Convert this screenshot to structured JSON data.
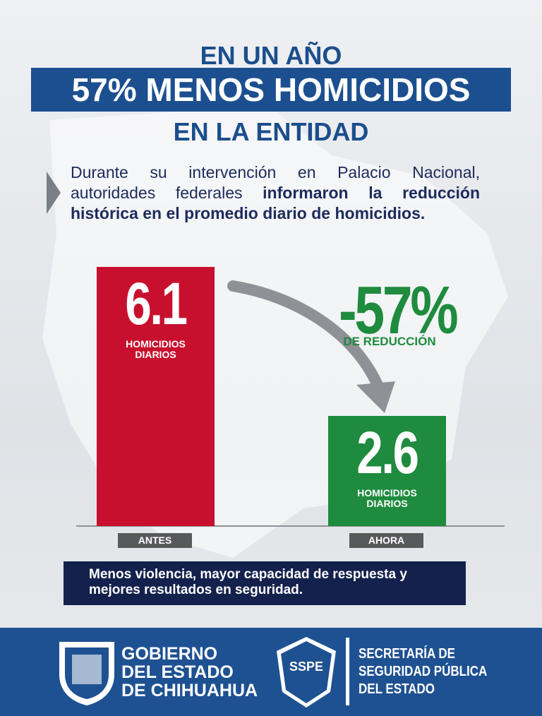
{
  "header": {
    "line1": "EN UN AÑO",
    "line2": "57% MENOS HOMICIDIOS",
    "line3": "EN LA ENTIDAD"
  },
  "intro": {
    "text": "Durante su intervención en Palacio Nacional, autoridades federales ",
    "bold": "informaron la reducción histórica en el promedio diario de homicidios."
  },
  "chart_data": {
    "type": "bar",
    "categories": [
      "ANTES",
      "AHORA"
    ],
    "values": [
      6.1,
      2.6
    ],
    "colors": [
      "#c8102e",
      "#1e8b3e"
    ],
    "value_caption": "HOMICIDIOS DIARIOS",
    "annotation": {
      "text": "-57%",
      "caption": "DE REDUCCIÓN"
    }
  },
  "banner": "Menos violencia, mayor capacidad de respuesta y mejores resultados en seguridad.",
  "footer": {
    "government": [
      "GOBIERNO",
      "DEL ESTADO",
      "DE CHIHUAHUA"
    ],
    "secretariat": [
      "SECRETARÍA DE",
      "SEGURIDAD PÚBLICA",
      "DEL ESTADO"
    ],
    "badge": "SSPE"
  }
}
